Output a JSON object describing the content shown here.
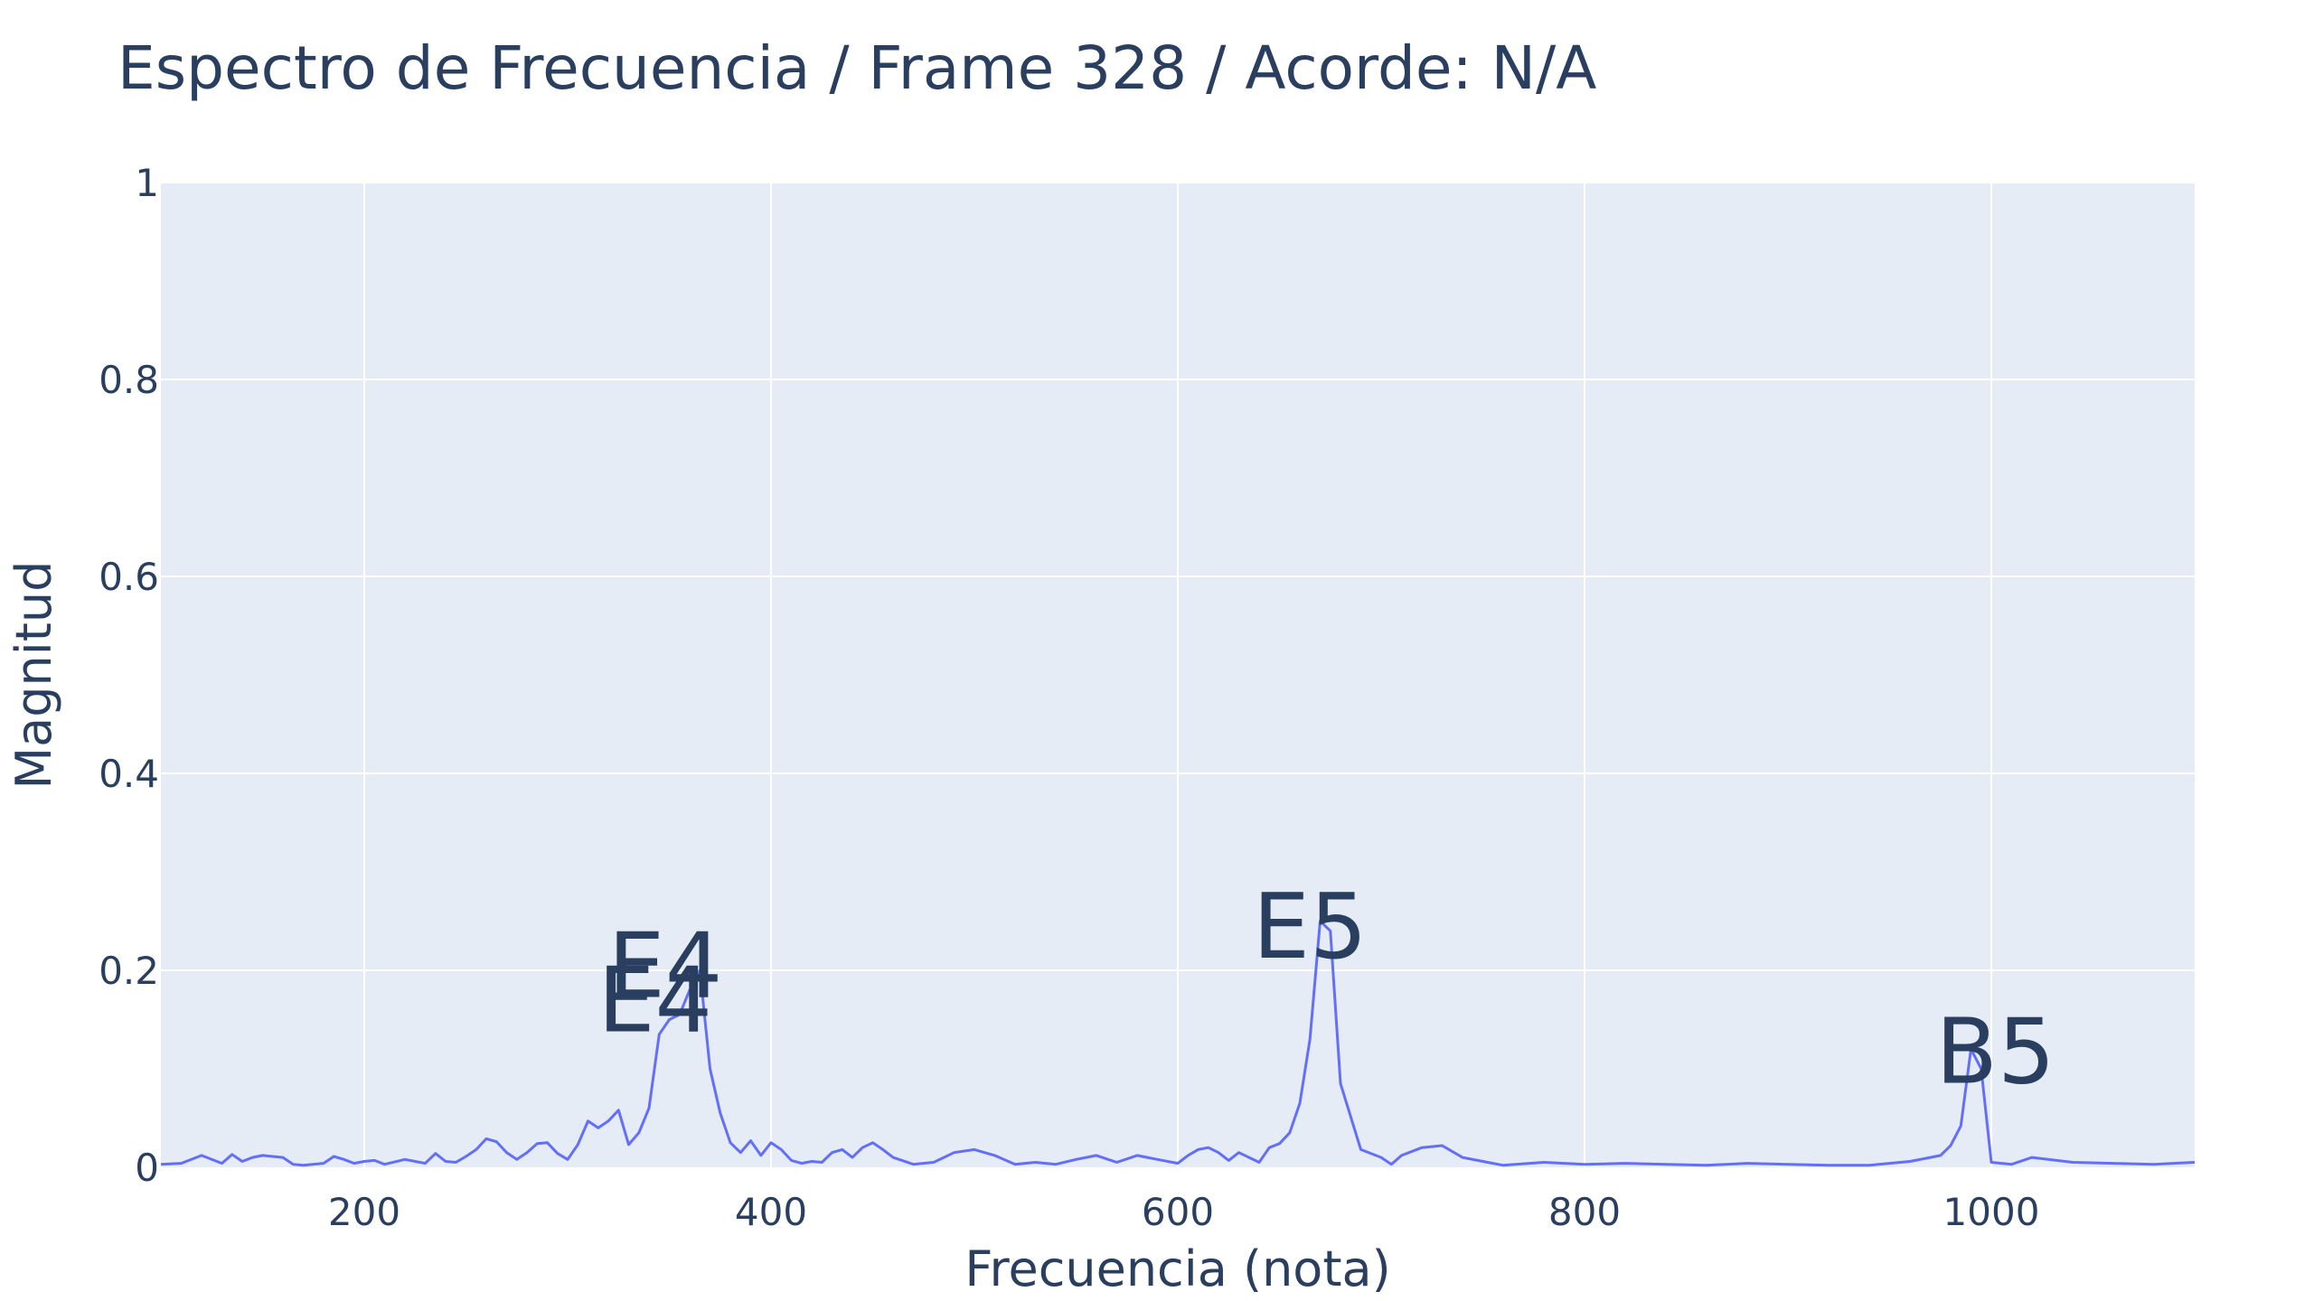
{
  "chart_data": {
    "type": "line",
    "title": "Espectro de Frecuencia / Frame 328 / Acorde: N/A",
    "xlabel": "Frecuencia (nota)",
    "ylabel": "Magnitud",
    "xlim": [
      100,
      1100
    ],
    "ylim": [
      0,
      1
    ],
    "xticks": [
      200,
      400,
      600,
      800,
      1000
    ],
    "xtick_labels": [
      "200",
      "400",
      "600",
      "800",
      "1000"
    ],
    "yticks": [
      0,
      0.2,
      0.4,
      0.6,
      0.8,
      1
    ],
    "ytick_labels": [
      "0",
      "0.2",
      "0.4",
      "0.6",
      "0.8",
      "1"
    ],
    "grid": true,
    "plot_background": "#e5ecf6",
    "line_color": "#636efa",
    "series": [
      {
        "x": [
          100,
          110,
          120,
          130,
          135,
          140,
          145,
          150,
          160,
          165,
          170,
          180,
          185,
          190,
          195,
          200,
          205,
          210,
          220,
          230,
          235,
          240,
          245,
          250,
          255,
          260,
          265,
          270,
          275,
          280,
          285,
          290,
          295,
          300,
          305,
          310,
          315,
          320,
          325,
          330,
          335,
          340,
          345,
          350,
          355,
          360,
          365,
          370,
          375,
          380,
          385,
          390,
          395,
          400,
          405,
          410,
          415,
          420,
          425,
          430,
          435,
          440,
          445,
          450,
          455,
          460,
          470,
          480,
          490,
          500,
          510,
          520,
          530,
          540,
          550,
          560,
          570,
          580,
          590,
          600,
          605,
          610,
          615,
          620,
          625,
          630,
          640,
          645,
          650,
          655,
          660,
          665,
          670,
          675,
          680,
          690,
          700,
          705,
          710,
          720,
          730,
          740,
          760,
          780,
          800,
          820,
          840,
          860,
          880,
          900,
          920,
          940,
          960,
          970,
          975,
          980,
          985,
          990,
          995,
          1000,
          1010,
          1020,
          1040,
          1060,
          1080,
          1100
        ],
        "y": [
          0.003,
          0.004,
          0.012,
          0.004,
          0.013,
          0.006,
          0.01,
          0.012,
          0.01,
          0.003,
          0.002,
          0.004,
          0.011,
          0.008,
          0.004,
          0.006,
          0.007,
          0.003,
          0.008,
          0.004,
          0.014,
          0.006,
          0.005,
          0.011,
          0.018,
          0.029,
          0.026,
          0.015,
          0.008,
          0.015,
          0.024,
          0.025,
          0.014,
          0.008,
          0.023,
          0.047,
          0.04,
          0.047,
          0.058,
          0.023,
          0.035,
          0.06,
          0.135,
          0.15,
          0.155,
          0.18,
          0.2,
          0.1,
          0.055,
          0.025,
          0.015,
          0.027,
          0.012,
          0.025,
          0.018,
          0.007,
          0.004,
          0.006,
          0.005,
          0.015,
          0.018,
          0.01,
          0.02,
          0.025,
          0.018,
          0.01,
          0.003,
          0.005,
          0.015,
          0.018,
          0.012,
          0.003,
          0.005,
          0.003,
          0.008,
          0.012,
          0.005,
          0.012,
          0.008,
          0.004,
          0.012,
          0.018,
          0.02,
          0.015,
          0.007,
          0.015,
          0.005,
          0.02,
          0.024,
          0.035,
          0.065,
          0.13,
          0.25,
          0.24,
          0.085,
          0.018,
          0.01,
          0.003,
          0.012,
          0.02,
          0.022,
          0.01,
          0.002,
          0.005,
          0.003,
          0.004,
          0.003,
          0.002,
          0.004,
          0.003,
          0.002,
          0.002,
          0.006,
          0.01,
          0.012,
          0.022,
          0.042,
          0.12,
          0.1,
          0.005,
          0.003,
          0.01,
          0.005,
          0.004,
          0.003,
          0.005
        ]
      }
    ],
    "annotations": [
      {
        "text": "E4",
        "x": 348,
        "y": 0.205
      },
      {
        "text": "E4",
        "x": 343,
        "y": 0.17
      },
      {
        "text": "E5",
        "x": 665,
        "y": 0.245
      },
      {
        "text": "B5",
        "x": 1002,
        "y": 0.118
      }
    ]
  }
}
